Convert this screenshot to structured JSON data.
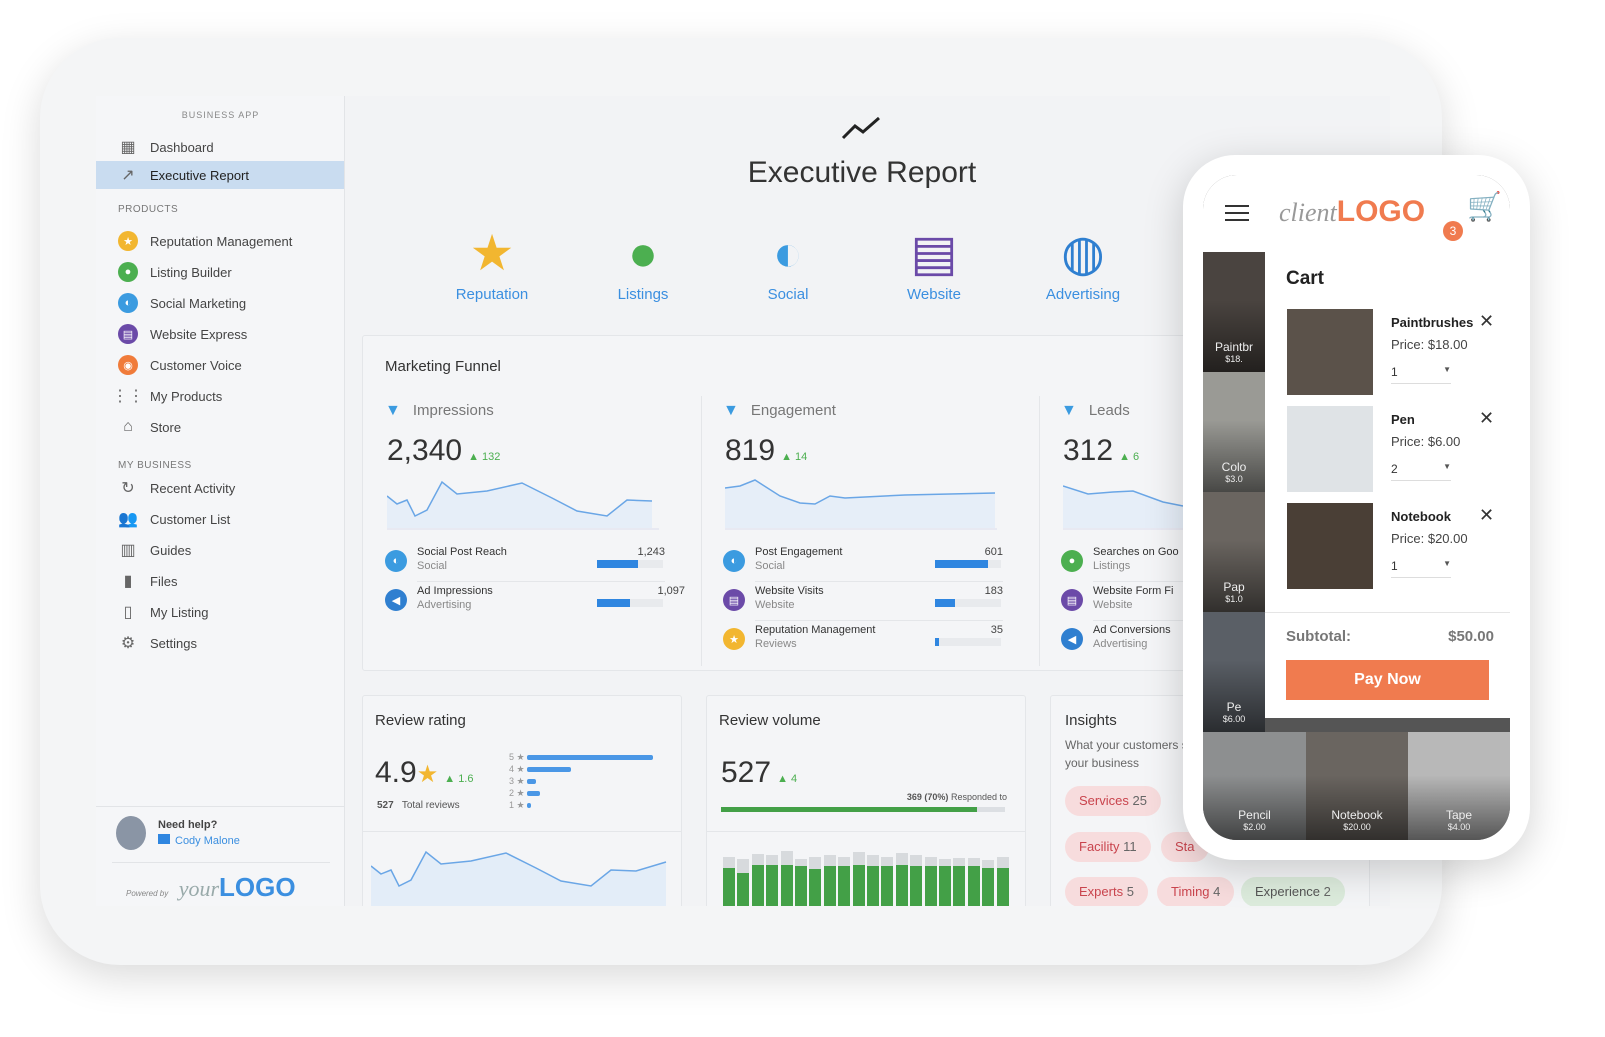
{
  "sidebar": {
    "app_label": "BUSINESS APP",
    "top": [
      {
        "label": "Dashboard",
        "icon": "dashboard-icon"
      },
      {
        "label": "Executive Report",
        "icon": "trend-icon",
        "active": true
      }
    ],
    "products_label": "PRODUCTS",
    "products": [
      {
        "label": "Reputation Management",
        "icon": "star-icon",
        "color": "#f2b630"
      },
      {
        "label": "Listing Builder",
        "icon": "pin-icon",
        "color": "#4caf50"
      },
      {
        "label": "Social Marketing",
        "icon": "chat-icon",
        "color": "#3b9be0"
      },
      {
        "label": "Website Express",
        "icon": "website-icon",
        "color": "#6b4aa8"
      },
      {
        "label": "Customer Voice",
        "icon": "voice-icon",
        "color": "#f07b3a"
      },
      {
        "label": "My Products",
        "icon": "grid-icon"
      },
      {
        "label": "Store",
        "icon": "basket-icon"
      }
    ],
    "business_label": "MY BUSINESS",
    "business": [
      {
        "label": "Recent Activity",
        "icon": "refresh-icon"
      },
      {
        "label": "Customer List",
        "icon": "people-icon"
      },
      {
        "label": "Guides",
        "icon": "book-icon"
      },
      {
        "label": "Files",
        "icon": "file-icon"
      },
      {
        "label": "My Listing",
        "icon": "phone-icon"
      },
      {
        "label": "Settings",
        "icon": "gear-icon"
      }
    ],
    "help": {
      "title": "Need help?",
      "contact": "Cody Malone"
    },
    "powered_by": "Powered by",
    "logo_your": "your",
    "logo_brand": "LOGO"
  },
  "header": {
    "title": "Executive Report",
    "icon": "trend-icon"
  },
  "products": [
    {
      "label": "Reputation",
      "icon": "star-icon",
      "color": "#f2b630"
    },
    {
      "label": "Listings",
      "icon": "pin-icon",
      "color": "#4caf50"
    },
    {
      "label": "Social",
      "icon": "chat-icon",
      "color": "#3b9be0"
    },
    {
      "label": "Website",
      "icon": "website-icon",
      "color": "#6b4aa8"
    },
    {
      "label": "Advertising",
      "icon": "globe-icon",
      "color": "#2f7fd0"
    }
  ],
  "funnel": {
    "title": "Marketing Funnel",
    "columns": [
      {
        "label": "Impressions",
        "value": "2,340",
        "delta": "132",
        "metrics": [
          {
            "name": "Social Post Reach",
            "source": "Social",
            "value": "1,243",
            "fill": 0.62,
            "color": "#3b9be0",
            "icon": "chat-icon"
          },
          {
            "name": "Ad Impressions",
            "source": "Advertising",
            "value": "1,097",
            "fill": 0.5,
            "color": "#2f7fd0",
            "icon": "megaphone-icon"
          }
        ]
      },
      {
        "label": "Engagement",
        "value": "819",
        "delta": "14",
        "metrics": [
          {
            "name": "Post Engagement",
            "source": "Social",
            "value": "601",
            "fill": 0.8,
            "color": "#3b9be0",
            "icon": "chat-icon"
          },
          {
            "name": "Website Visits",
            "source": "Website",
            "value": "183",
            "fill": 0.3,
            "color": "#6b4aa8",
            "icon": "website-icon"
          },
          {
            "name": "Reputation Management",
            "source": "Reviews",
            "value": "35",
            "fill": 0.06,
            "color": "#f2b630",
            "icon": "star-icon"
          }
        ]
      },
      {
        "label": "Leads",
        "value": "312",
        "delta": "6",
        "metrics": [
          {
            "name": "Searches on Goo",
            "source": "Listings",
            "color": "#4caf50",
            "icon": "pin-icon"
          },
          {
            "name": "Website Form Fi",
            "source": "Website",
            "color": "#6b4aa8",
            "icon": "website-icon"
          },
          {
            "name": "Ad Conversions",
            "source": "Advertising",
            "color": "#2f7fd0",
            "icon": "megaphone-icon"
          }
        ]
      }
    ]
  },
  "review_rating": {
    "title": "Review rating",
    "value": "4.9",
    "delta": "1.6",
    "total": "527",
    "total_label": "Total reviews",
    "distribution": [
      {
        "star": "5",
        "share": 1
      },
      {
        "star": "4",
        "share": 0.35
      },
      {
        "star": "3",
        "share": 0.07
      },
      {
        "star": "2",
        "share": 0.1
      },
      {
        "star": "1",
        "share": 0.02
      }
    ]
  },
  "review_volume": {
    "title": "Review volume",
    "value": "527",
    "delta": "4",
    "responded": "369",
    "responded_pct": "(70%)",
    "responded_label": "Responded to",
    "responded_fill": 0.9,
    "bars": [
      [
        0.9,
        0.7
      ],
      [
        0.85,
        0.6
      ],
      [
        0.95,
        0.75
      ],
      [
        0.92,
        0.75
      ],
      [
        1,
        0.75
      ],
      [
        0.85,
        0.72
      ],
      [
        0.9,
        0.68
      ],
      [
        0.92,
        0.72
      ],
      [
        0.9,
        0.72
      ],
      [
        0.98,
        0.75
      ],
      [
        0.92,
        0.72
      ],
      [
        0.9,
        0.72
      ],
      [
        0.96,
        0.75
      ],
      [
        0.92,
        0.72
      ],
      [
        0.9,
        0.72
      ],
      [
        0.86,
        0.72
      ],
      [
        0.88,
        0.72
      ],
      [
        0.88,
        0.72
      ],
      [
        0.84,
        0.7
      ],
      [
        0.9,
        0.7
      ]
    ]
  },
  "insights": {
    "title": "Insights",
    "subtitle": "What your customers say about your business",
    "tags": [
      {
        "label": "Services",
        "count": "25",
        "tone": "neg"
      },
      {
        "label": "Facility",
        "count": "11",
        "tone": "neg"
      },
      {
        "label": "Sta",
        "count": "",
        "tone": "neg"
      },
      {
        "label": "Experts",
        "count": "5",
        "tone": "neg"
      },
      {
        "label": "Timing",
        "count": "4",
        "tone": "neg"
      },
      {
        "label": "Experience",
        "count": "2",
        "tone": "pos"
      }
    ]
  },
  "phone": {
    "logo_client": "client",
    "logo_brand": "LOGO",
    "cart_count": "3",
    "cart_title": "Cart",
    "items": [
      {
        "name": "Paintbrushes",
        "price": "Price: $18.00",
        "qty": "1"
      },
      {
        "name": "Pen",
        "price": "Price: $6.00",
        "qty": "2"
      },
      {
        "name": "Notebook",
        "price": "Price: $20.00",
        "qty": "1"
      }
    ],
    "subtotal_label": "Subtotal:",
    "subtotal": "$50.00",
    "pay_label": "Pay Now",
    "tiles": [
      {
        "name": "Paintbr",
        "price": "$18."
      },
      {
        "name": "Colo",
        "price": "$3.0"
      },
      {
        "name": "Pap",
        "price": "$1.0"
      },
      {
        "name": "Pe",
        "price": "$6.00"
      },
      {
        "name": "Pencil",
        "price": "$2.00"
      },
      {
        "name": "Notebook",
        "price": "$20.00"
      },
      {
        "name": "Tape",
        "price": "$4.00"
      }
    ]
  },
  "colors": {
    "accent": "#3b8fe0",
    "green": "#4caf50",
    "orange": "#f07b4f"
  }
}
